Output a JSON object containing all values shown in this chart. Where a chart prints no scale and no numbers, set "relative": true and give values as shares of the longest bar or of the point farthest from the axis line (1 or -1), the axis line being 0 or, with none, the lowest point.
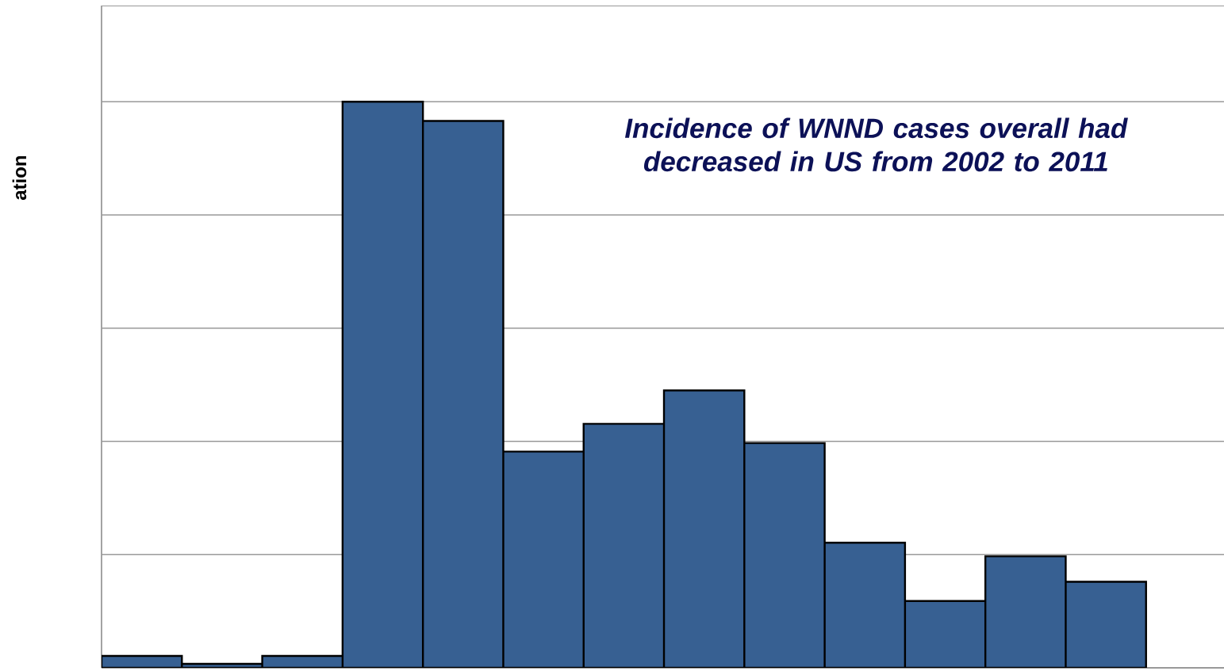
{
  "chart_data": {
    "type": "bar",
    "relative": true,
    "ylabel": "ation",
    "color": "#376092",
    "grid": "y",
    "categories": [
      null,
      null,
      null,
      null,
      null,
      null,
      null,
      null,
      null,
      null,
      null,
      null,
      null
    ],
    "values": [
      0.021,
      0.007,
      0.021,
      1,
      0.966,
      0.382,
      0.431,
      0.49,
      0.397,
      0.221,
      0.118,
      0.197,
      0.152
    ],
    "annotations": [
      "Incidence of WNND cases overall had decreased in US from 2002 to 2011"
    ]
  }
}
